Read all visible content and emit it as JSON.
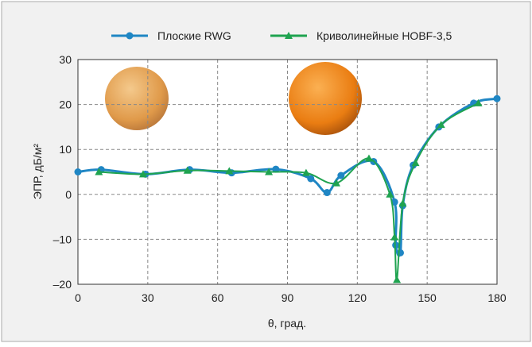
{
  "chart_data": {
    "type": "line",
    "x_label": "θ, град.",
    "y_label": "ЭПР, дБ/м²",
    "xlim": [
      0,
      180
    ],
    "xticks": [
      0,
      30,
      60,
      90,
      120,
      150,
      180
    ],
    "ylim": [
      -20,
      30
    ],
    "yticks": [
      {
        "value": -20,
        "label": "–20"
      },
      {
        "value": -10,
        "label": "–10"
      },
      0,
      10,
      20,
      30
    ],
    "grid": true,
    "legend": "top",
    "series": [
      {
        "name": "Плоские RWG",
        "color": "#1f86c4",
        "marker": "circle",
        "x": [
          0,
          10,
          29,
          48,
          66,
          85,
          100,
          107,
          113,
          127,
          136,
          136.5,
          138.5,
          139.5,
          144,
          155,
          170,
          180
        ],
        "values": [
          5,
          5.5,
          4.5,
          5.5,
          4.8,
          5.6,
          3.5,
          0.4,
          4.2,
          7.3,
          -1.7,
          -11.3,
          -13,
          -2.5,
          6.5,
          15,
          20.3,
          21.3
        ]
      },
      {
        "name": "Криволинейные НОВF-3,5",
        "color": "#1fa350",
        "marker": "triangle",
        "x": [
          9,
          28,
          47,
          65,
          82,
          98,
          111,
          125,
          134,
          136,
          137,
          139.5,
          145,
          156,
          172
        ],
        "values": [
          5,
          4.5,
          5.3,
          5.2,
          5,
          4.8,
          2.5,
          8,
          0,
          -9.5,
          -19,
          -2,
          7,
          15.5,
          20.3
        ]
      }
    ]
  }
}
